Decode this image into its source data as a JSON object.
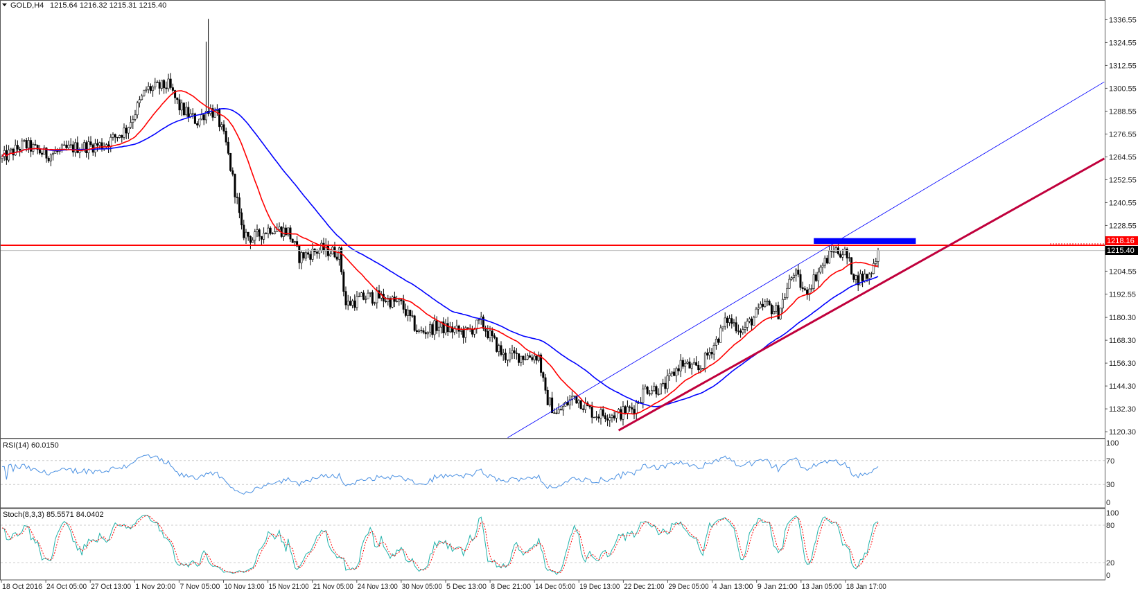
{
  "header": {
    "symbol": "GOLD,H4",
    "ohlc": "1215.64 1216.32 1215.31 1215.40"
  },
  "colors": {
    "ma_fast": "#ff0000",
    "ma_slow": "#0000ff",
    "rsi": "#4a90e2",
    "stoch_k": "#20b2aa",
    "stoch_d": "#ff0000",
    "resistance": "#ff0000",
    "trendline": "#c0003c",
    "channel": "#0000ff"
  },
  "chart_data": [
    {
      "type": "candlestick",
      "title": "GOLD,H4",
      "bars": 396,
      "anchors": [
        [
          0,
          1263.7
        ],
        [
          10,
          1271
        ],
        [
          20,
          1265.6
        ],
        [
          33,
          1269.5
        ],
        [
          46,
          1271
        ],
        [
          56,
          1279
        ],
        [
          65,
          1300
        ],
        [
          75,
          1302
        ],
        [
          80,
          1290.6
        ],
        [
          88,
          1283
        ],
        [
          93,
          1290
        ],
        [
          97,
          1286
        ],
        [
          101,
          1271
        ],
        [
          106,
          1241
        ],
        [
          108,
          1225.4
        ],
        [
          113,
          1221.5
        ],
        [
          121,
          1227.3
        ],
        [
          129,
          1225.4
        ],
        [
          134,
          1212
        ],
        [
          144,
          1216
        ],
        [
          152,
          1214
        ],
        [
          155,
          1187
        ],
        [
          164,
          1191
        ],
        [
          170,
          1191
        ],
        [
          180,
          1187
        ],
        [
          188,
          1172
        ],
        [
          196,
          1175.6
        ],
        [
          209,
          1172
        ],
        [
          216,
          1177.5
        ],
        [
          226,
          1160
        ],
        [
          236,
          1160
        ],
        [
          242,
          1160
        ],
        [
          245,
          1139
        ],
        [
          250,
          1129.5
        ],
        [
          258,
          1139
        ],
        [
          267,
          1129.5
        ],
        [
          278,
          1129.5
        ],
        [
          285,
          1133
        ],
        [
          290,
          1143
        ],
        [
          298,
          1143
        ],
        [
          306,
          1156.3
        ],
        [
          314,
          1152.5
        ],
        [
          322,
          1168
        ],
        [
          327,
          1179.4
        ],
        [
          334,
          1173.6
        ],
        [
          344,
          1187
        ],
        [
          350,
          1183
        ],
        [
          357,
          1204.4
        ],
        [
          362,
          1192.8
        ],
        [
          368,
          1204.4
        ],
        [
          375,
          1216
        ],
        [
          380,
          1214
        ],
        [
          385,
          1200.4
        ],
        [
          391,
          1202.3
        ],
        [
          395,
          1215.4
        ]
      ],
      "spike_high": 1337,
      "ylim": [
        1114,
        1344
      ],
      "yticks": [
        "1336.55",
        "1324.55",
        "1312.55",
        "1300.55",
        "1288.55",
        "1276.55",
        "1264.55",
        "1252.55",
        "1240.55",
        "1228.55",
        "1204.55",
        "1192.55",
        "1180.30",
        "1168.30",
        "1156.30",
        "1144.30",
        "1132.30",
        "1120.30"
      ],
      "price_labels": {
        "resistance": "1218.16",
        "bid": "1215.40"
      },
      "xticks": [
        "18 Oct 2016",
        "24 Oct 05:00",
        "27 Oct 13:00",
        "1 Nov 20:00",
        "7 Nov 05:00",
        "10 Nov 13:00",
        "15 Nov 21:00",
        "21 Nov 05:00",
        "24 Nov 13:00",
        "30 Nov 05:00",
        "5 Dec 13:00",
        "8 Dec 21:00",
        "14 Dec 05:00",
        "19 Dec 13:00",
        "22 Dec 21:00",
        "29 Dec 05:00",
        "4 Jan 13:00",
        "9 Jan 21:00",
        "13 Jan 05:00",
        "18 Jan 17:00"
      ],
      "ma_periods": [
        20,
        50
      ],
      "lines": {
        "resistance": 1218.16,
        "channel": [
          [
            228,
            1117.2
          ],
          [
            497,
            1303.9
          ]
        ],
        "trendline": [
          [
            278,
            1121
          ],
          [
            497,
            1263.7
          ]
        ],
        "zone": {
          "from_bar": 366,
          "to_bar": 412,
          "low": 1218.9,
          "high": 1221.9
        }
      }
    },
    {
      "type": "line",
      "title": "RSI(14) 60.0150",
      "levels": [
        70,
        30
      ],
      "yticks": [
        "100",
        "70",
        "30",
        "0"
      ],
      "ylim": [
        0,
        100
      ]
    },
    {
      "type": "line",
      "title": "Stoch(8,3,3) 85.5571 84.0402",
      "levels": [
        80,
        20
      ],
      "yticks": [
        "100",
        "80",
        "20",
        "0"
      ],
      "ylim": [
        0,
        100
      ]
    }
  ]
}
